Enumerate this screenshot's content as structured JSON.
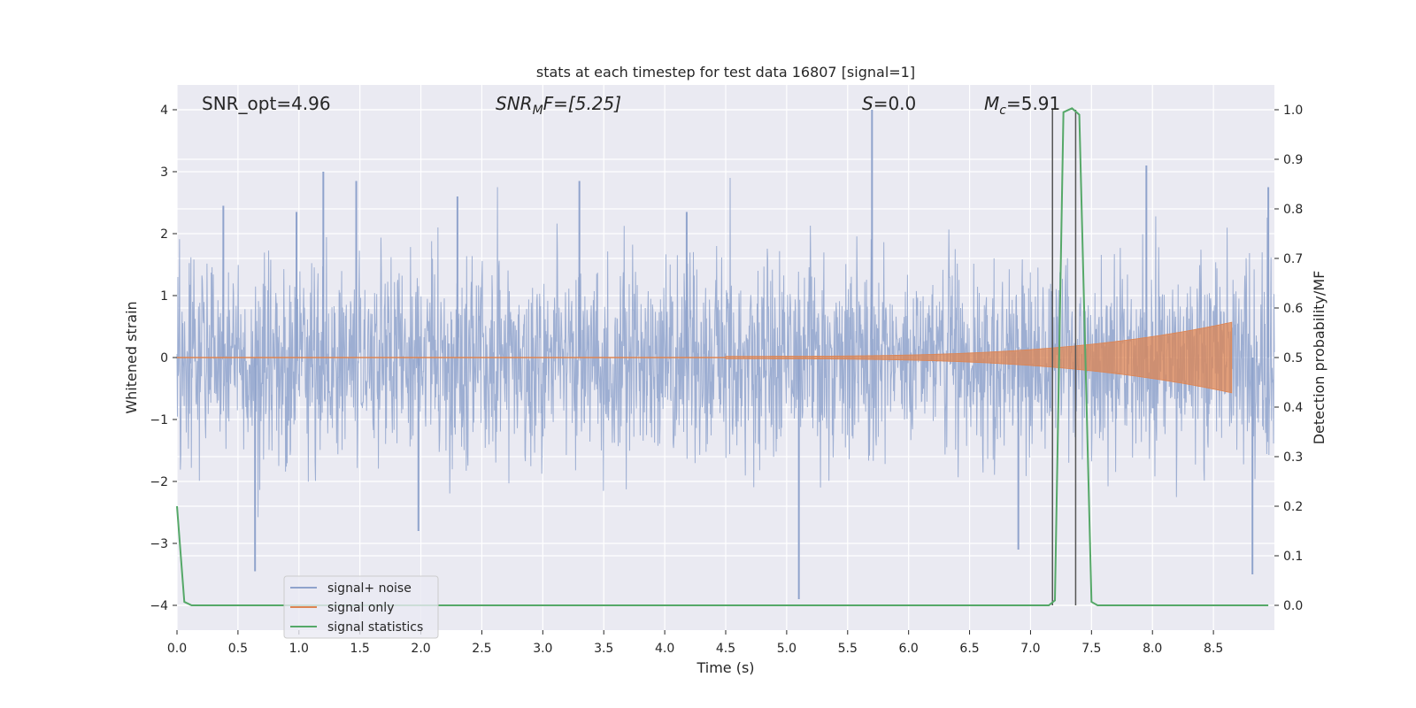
{
  "chart_data": {
    "type": "line",
    "title": "stats at each timestep for test data 16807 [signal=1]",
    "xlabel": "Time (s)",
    "ylabel": "Whitened strain",
    "y2label": "Detection probability/MF",
    "xlim": [
      0.0,
      9.0
    ],
    "ylim": [
      -4.4,
      4.4
    ],
    "y2lim": [
      -0.05,
      1.05
    ],
    "xticks": [
      0.0,
      0.5,
      1.0,
      1.5,
      2.0,
      2.5,
      3.0,
      3.5,
      4.0,
      4.5,
      5.0,
      5.5,
      6.0,
      6.5,
      7.0,
      7.5,
      8.0,
      8.5
    ],
    "xtick_labels": [
      "0.0",
      "0.5",
      "1.0",
      "1.5",
      "2.0",
      "2.5",
      "3.0",
      "3.5",
      "4.0",
      "4.5",
      "5.0",
      "5.5",
      "6.0",
      "6.5",
      "7.0",
      "7.5",
      "8.0",
      "8.5"
    ],
    "yticks": [
      -4,
      -3,
      -2,
      -1,
      0,
      1,
      2,
      3,
      4
    ],
    "ytick_labels": [
      "−4",
      "−3",
      "−2",
      "−1",
      "0",
      "1",
      "2",
      "3",
      "4"
    ],
    "y2ticks": [
      0.0,
      0.1,
      0.2,
      0.3,
      0.4,
      0.5,
      0.6,
      0.7,
      0.8,
      0.9,
      1.0
    ],
    "y2tick_labels": [
      "0.0",
      "0.1",
      "0.2",
      "0.3",
      "0.4",
      "0.5",
      "0.6",
      "0.7",
      "0.8",
      "0.9",
      "1.0"
    ],
    "grid": true,
    "legend_position": "lower-left",
    "annotations": {
      "snr_opt": "SNR_opt=4.96",
      "snr_mf_main": "SNR",
      "snr_mf_sub": "M",
      "snr_mf_rest": "F=[5.25]",
      "s_main": "S",
      "s_rest": "=0.0",
      "mc_main": "M",
      "mc_sub": "c",
      "mc_rest": "=5.91"
    },
    "series": [
      {
        "name": "signal+ noise",
        "color": "#8fa3cc",
        "noise_std": 0.78,
        "peaks": [
          {
            "x": 0.38,
            "y": 2.45
          },
          {
            "x": 0.64,
            "y": -3.45
          },
          {
            "x": 0.98,
            "y": 2.35
          },
          {
            "x": 1.2,
            "y": 3.0
          },
          {
            "x": 1.47,
            "y": 2.85
          },
          {
            "x": 1.98,
            "y": -2.8
          },
          {
            "x": 2.3,
            "y": 2.6
          },
          {
            "x": 3.3,
            "y": 2.85
          },
          {
            "x": 4.18,
            "y": 2.35
          },
          {
            "x": 5.1,
            "y": -3.9
          },
          {
            "x": 5.7,
            "y": 4.0
          },
          {
            "x": 6.9,
            "y": -3.1
          },
          {
            "x": 7.95,
            "y": 3.1
          },
          {
            "x": 8.95,
            "y": 2.75
          },
          {
            "x": 8.82,
            "y": -3.5
          }
        ]
      },
      {
        "name": "signal only",
        "color": "#dd8452",
        "chirp_start": 4.5,
        "chirp_end": 8.65,
        "peak_amplitude": 0.55
      },
      {
        "name": "signal statistics",
        "color": "#55a868",
        "x": [
          0.0,
          0.06,
          0.12,
          0.2,
          7.15,
          7.2,
          7.27,
          7.34,
          7.4,
          7.5,
          7.55,
          8.95
        ],
        "y": [
          0.2,
          0.007,
          0.0,
          0.0,
          0.0,
          0.01,
          0.995,
          1.003,
          0.99,
          0.007,
          0.0,
          0.0
        ]
      }
    ],
    "vlines": [
      {
        "x": 7.18,
        "ymin": 0.0,
        "ymax": 1.0,
        "color": "#555555"
      },
      {
        "x": 7.37,
        "ymin": 0.0,
        "ymax": 1.0,
        "color": "#555555"
      }
    ]
  }
}
